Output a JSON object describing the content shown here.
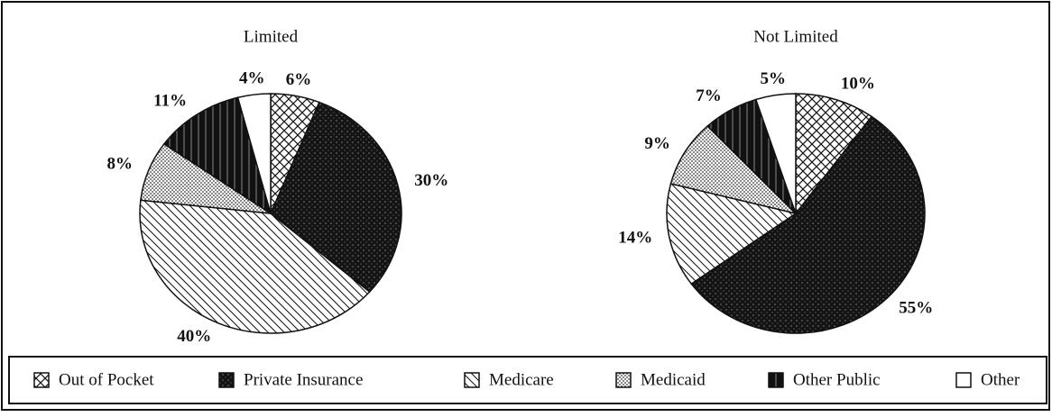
{
  "chart_data": [
    {
      "type": "pie",
      "title": "Limited",
      "categories": [
        "Out of Pocket",
        "Private Insurance",
        "Medicare",
        "Medicaid",
        "Other Public",
        "Other"
      ],
      "values": [
        6,
        30,
        40,
        8,
        11,
        4
      ],
      "value_labels": [
        "6%",
        "30%",
        "40%",
        "8%",
        "11%",
        "4%"
      ]
    },
    {
      "type": "pie",
      "title": "Not Limited",
      "categories": [
        "Out of Pocket",
        "Private Insurance",
        "Medicare",
        "Medicaid",
        "Other Public",
        "Other"
      ],
      "values": [
        10,
        55,
        14,
        9,
        7,
        5
      ],
      "value_labels": [
        "10%",
        "55%",
        "14%",
        "9%",
        "7%",
        "5%"
      ]
    }
  ]
}
